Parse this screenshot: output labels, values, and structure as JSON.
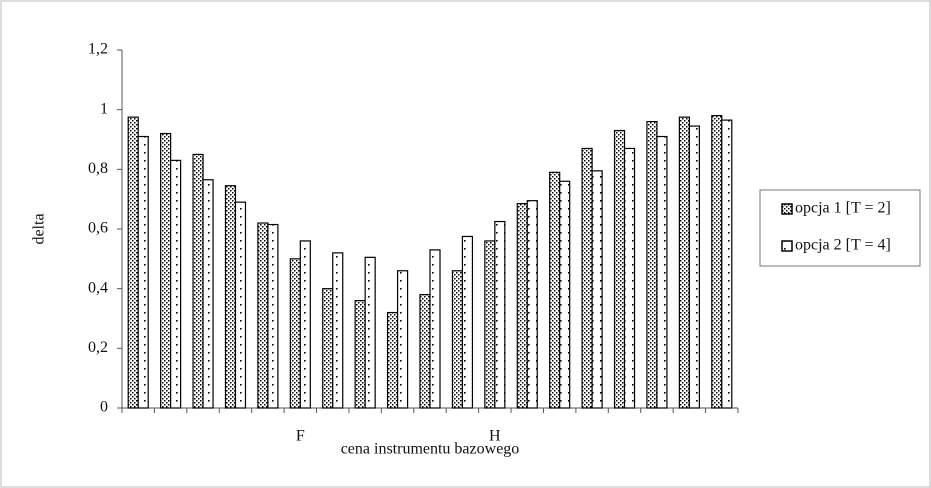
{
  "chart_data": {
    "type": "bar",
    "x_label": "cena instrumentu bazowego",
    "y_label": "delta",
    "categories": [
      null,
      null,
      null,
      null,
      null,
      "F",
      null,
      null,
      null,
      null,
      null,
      "H",
      null,
      null,
      null,
      null,
      null,
      null,
      null
    ],
    "series": [
      {
        "name": "opcja 1 [T = 2]",
        "color": "#000000",
        "values": [
          0.975,
          0.92,
          0.85,
          0.745,
          0.62,
          0.5,
          0.4,
          0.36,
          0.32,
          0.38,
          0.46,
          0.56,
          0.685,
          0.79,
          0.87,
          0.93,
          0.96,
          0.975,
          0.98
        ]
      },
      {
        "name": "opcja 2 [T = 4]",
        "color": "#000000",
        "values": [
          0.91,
          0.83,
          0.765,
          0.69,
          0.615,
          0.56,
          0.52,
          0.505,
          0.46,
          0.53,
          0.575,
          0.625,
          0.695,
          0.76,
          0.795,
          0.87,
          0.91,
          0.945,
          0.965
        ]
      }
    ],
    "ylim": [
      0,
      1.2
    ],
    "yticks": [
      0,
      {
        "value": 0.2,
        "label": "0,2"
      },
      {
        "value": 0.4,
        "label": "0,4"
      },
      {
        "value": 0.6,
        "label": "0,6"
      },
      {
        "value": 0.8,
        "label": "0,8"
      },
      1,
      {
        "value": 1.2,
        "label": "1,2"
      }
    ],
    "grid": false,
    "legend": "right"
  }
}
